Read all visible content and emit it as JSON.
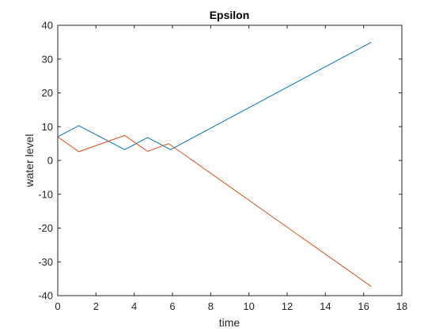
{
  "chart_data": {
    "type": "line",
    "title": "Epsilon",
    "xlabel": "time",
    "ylabel": "water level",
    "xlim": [
      0,
      18
    ],
    "ylim": [
      -40,
      40
    ],
    "xticks": [
      "0",
      "2",
      "4",
      "6",
      "8",
      "10",
      "12",
      "14",
      "16",
      "18"
    ],
    "yticks": [
      "-40",
      "-30",
      "-20",
      "-10",
      "0",
      "10",
      "20",
      "30",
      "40"
    ],
    "grid": false,
    "series": [
      {
        "color": "#0072BD",
        "x": [
          0,
          1.1,
          3.5,
          4.7,
          5.9,
          16.4
        ],
        "y": [
          7,
          10.3,
          3.2,
          6.8,
          3.2,
          35
        ]
      },
      {
        "color": "#D95319",
        "x": [
          0,
          1.1,
          3.5,
          4.7,
          5.8,
          16.4
        ],
        "y": [
          7,
          2.6,
          7.4,
          2.7,
          5,
          -37.3
        ]
      }
    ]
  }
}
